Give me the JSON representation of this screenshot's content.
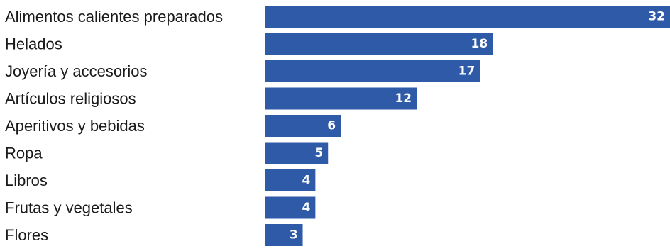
{
  "chart_data": {
    "type": "bar",
    "orientation": "horizontal",
    "title": "",
    "xlabel": "",
    "ylabel": "",
    "categories": [
      "Alimentos calientes preparados",
      "Helados",
      "Joyería y accesorios",
      "Artículos religiosos",
      "Aperitivos y bebidas",
      "Ropa",
      "Libros",
      "Frutas y vegetales",
      "Flores"
    ],
    "values": [
      32,
      18,
      17,
      12,
      6,
      5,
      4,
      4,
      3
    ],
    "xlim": [
      0,
      32
    ],
    "grid": false,
    "legend": "none",
    "data_labels": "inside-end",
    "bar_color": "#2f5aa8",
    "label_color": "#ffffff"
  }
}
